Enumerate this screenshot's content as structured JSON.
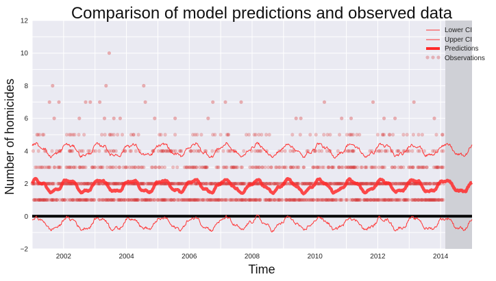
{
  "chart_data": {
    "type": "line",
    "title": "Comparison of model predictions and observed data",
    "xlabel": "Time",
    "ylabel": "Number of homicides",
    "xlim": [
      2001.0,
      2015.0
    ],
    "ylim": [
      -2,
      12
    ],
    "x_ticks": [
      "2002",
      "2004",
      "2006",
      "2008",
      "2010",
      "2012",
      "2014"
    ],
    "x_tick_values": [
      2002,
      2004,
      2006,
      2008,
      2010,
      2012,
      2014
    ],
    "y_ticks": [
      "−2",
      "0",
      "2",
      "4",
      "6",
      "8",
      "10",
      "12"
    ],
    "y_tick_values": [
      -2,
      0,
      2,
      4,
      6,
      8,
      10,
      12
    ],
    "grid": true,
    "legend_position": "top-right",
    "legend": [
      "Lower CI",
      "Upper CI",
      "Predictions",
      "Observations"
    ],
    "reference_line_y": 0,
    "shaded_region_x": [
      2014.15,
      2015.0
    ],
    "series": [
      {
        "name": "Predictions",
        "color": "#ff2a2a",
        "base": 1.85,
        "seasonal_amplitude": 0.35,
        "noise": 0.1
      },
      {
        "name": "Upper CI",
        "color": "#ff3333",
        "base": 4.05,
        "seasonal_amplitude": 0.35,
        "noise": 0.18
      },
      {
        "name": "Lower CI",
        "color": "#ff3333",
        "base": -0.45,
        "seasonal_amplitude": 0.35,
        "noise": 0.18
      }
    ],
    "observations": {
      "name": "Observations",
      "color": "#d42a2a",
      "x_range": [
        2001.0,
        2014.1
      ],
      "common_levels": [
        1,
        2,
        3,
        4,
        5
      ],
      "outliers": [
        {
          "x": 2001.55,
          "y": 7
        },
        {
          "x": 2001.65,
          "y": 8
        },
        {
          "x": 2001.7,
          "y": 6
        },
        {
          "x": 2001.85,
          "y": 7
        },
        {
          "x": 2002.5,
          "y": 6
        },
        {
          "x": 2002.7,
          "y": 7
        },
        {
          "x": 2002.85,
          "y": 7
        },
        {
          "x": 2003.15,
          "y": 7
        },
        {
          "x": 2003.3,
          "y": 6
        },
        {
          "x": 2003.35,
          "y": 8
        },
        {
          "x": 2003.45,
          "y": 10
        },
        {
          "x": 2003.6,
          "y": 6
        },
        {
          "x": 2003.8,
          "y": 6
        },
        {
          "x": 2004.55,
          "y": 8
        },
        {
          "x": 2004.6,
          "y": 7
        },
        {
          "x": 2004.9,
          "y": 6
        },
        {
          "x": 2005.55,
          "y": 6
        },
        {
          "x": 2006.6,
          "y": 6
        },
        {
          "x": 2006.75,
          "y": 7
        },
        {
          "x": 2007.15,
          "y": 7
        },
        {
          "x": 2007.65,
          "y": 7
        },
        {
          "x": 2009.4,
          "y": 6
        },
        {
          "x": 2009.55,
          "y": 6
        },
        {
          "x": 2010.3,
          "y": 7
        },
        {
          "x": 2010.85,
          "y": 6
        },
        {
          "x": 2011.15,
          "y": 6
        },
        {
          "x": 2011.85,
          "y": 7
        },
        {
          "x": 2012.2,
          "y": 6
        },
        {
          "x": 2012.55,
          "y": 6
        },
        {
          "x": 2013.15,
          "y": 7
        },
        {
          "x": 2013.8,
          "y": 6
        }
      ]
    }
  }
}
